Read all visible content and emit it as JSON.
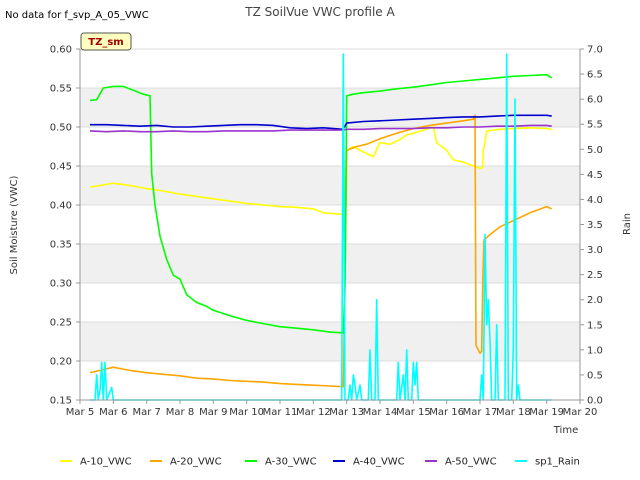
{
  "chart_data": {
    "type": "line",
    "title": "TZ SoilVue VWC profile A",
    "no_data_note": "No data for f_svp_A_05_VWC",
    "site_badge": "TZ_sm",
    "xlabel": "Time",
    "ylabel": "Soil Moisture (VWC)",
    "y2label": "Rain",
    "xlim": [
      5,
      20
    ],
    "ylim": [
      0.15,
      0.6
    ],
    "y2lim": [
      0.0,
      7.0
    ],
    "grid": "horizontal bands",
    "legend_position": "bottom",
    "x_ticks": [
      {
        "value": 5,
        "label": "Mar 5"
      },
      {
        "value": 6,
        "label": "Mar 6"
      },
      {
        "value": 7,
        "label": "Mar 7"
      },
      {
        "value": 8,
        "label": "Mar 8"
      },
      {
        "value": 9,
        "label": "Mar 9"
      },
      {
        "value": 10,
        "label": "Mar 10"
      },
      {
        "value": 11,
        "label": "Mar 11"
      },
      {
        "value": 12,
        "label": "Mar 12"
      },
      {
        "value": 13,
        "label": "Mar 13"
      },
      {
        "value": 14,
        "label": "Mar 14"
      },
      {
        "value": 15,
        "label": "Mar 15"
      },
      {
        "value": 16,
        "label": "Mar 16"
      },
      {
        "value": 17,
        "label": "Mar 17"
      },
      {
        "value": 18,
        "label": "Mar 18"
      },
      {
        "value": 19,
        "label": "Mar 19"
      },
      {
        "value": 20,
        "label": "Mar 20"
      }
    ],
    "y_ticks": [
      "0.15",
      "0.20",
      "0.25",
      "0.30",
      "0.35",
      "0.40",
      "0.45",
      "0.50",
      "0.55",
      "0.60"
    ],
    "y2_ticks": [
      "0.0",
      "0.5",
      "1.0",
      "1.5",
      "2.0",
      "2.5",
      "3.0",
      "3.5",
      "4.0",
      "4.5",
      "5.0",
      "5.5",
      "6.0",
      "6.5",
      "7.0"
    ],
    "series": [
      {
        "name": "A-10_VWC",
        "color": "#ffff00",
        "axis": "left",
        "points": [
          [
            5.3,
            0.423
          ],
          [
            5.6,
            0.425
          ],
          [
            6.0,
            0.428
          ],
          [
            6.5,
            0.425
          ],
          [
            7.0,
            0.421
          ],
          [
            7.5,
            0.418
          ],
          [
            8.0,
            0.414
          ],
          [
            8.5,
            0.411
          ],
          [
            9.0,
            0.408
          ],
          [
            9.5,
            0.405
          ],
          [
            10.0,
            0.402
          ],
          [
            10.5,
            0.4
          ],
          [
            11.0,
            0.398
          ],
          [
            11.5,
            0.397
          ],
          [
            12.0,
            0.395
          ],
          [
            12.3,
            0.39
          ],
          [
            12.6,
            0.389
          ],
          [
            12.9,
            0.388
          ],
          [
            13.0,
            0.47
          ],
          [
            13.2,
            0.475
          ],
          [
            13.5,
            0.468
          ],
          [
            13.8,
            0.462
          ],
          [
            14.0,
            0.48
          ],
          [
            14.3,
            0.478
          ],
          [
            14.6,
            0.484
          ],
          [
            14.8,
            0.49
          ],
          [
            15.0,
            0.492
          ],
          [
            15.3,
            0.496
          ],
          [
            15.6,
            0.5
          ],
          [
            15.7,
            0.48
          ],
          [
            16.0,
            0.47
          ],
          [
            16.2,
            0.458
          ],
          [
            16.5,
            0.455
          ],
          [
            16.8,
            0.45
          ],
          [
            17.0,
            0.447
          ],
          [
            17.08,
            0.448
          ],
          [
            17.1,
            0.47
          ],
          [
            17.15,
            0.48
          ],
          [
            17.2,
            0.495
          ],
          [
            17.6,
            0.497
          ],
          [
            18.0,
            0.498
          ],
          [
            18.5,
            0.499
          ],
          [
            19.0,
            0.498
          ],
          [
            19.15,
            0.497
          ]
        ]
      },
      {
        "name": "A-20_VWC",
        "color": "#ffa500",
        "axis": "left",
        "points": [
          [
            5.3,
            0.185
          ],
          [
            5.6,
            0.188
          ],
          [
            6.0,
            0.192
          ],
          [
            6.5,
            0.188
          ],
          [
            7.0,
            0.185
          ],
          [
            7.5,
            0.183
          ],
          [
            8.0,
            0.181
          ],
          [
            8.5,
            0.178
          ],
          [
            9.0,
            0.177
          ],
          [
            9.5,
            0.175
          ],
          [
            10.0,
            0.174
          ],
          [
            10.5,
            0.173
          ],
          [
            11.0,
            0.171
          ],
          [
            11.5,
            0.17
          ],
          [
            12.0,
            0.169
          ],
          [
            12.5,
            0.168
          ],
          [
            12.9,
            0.167
          ],
          [
            12.95,
            0.3
          ],
          [
            13.0,
            0.47
          ],
          [
            13.3,
            0.475
          ],
          [
            13.6,
            0.478
          ],
          [
            14.0,
            0.485
          ],
          [
            14.5,
            0.492
          ],
          [
            15.0,
            0.498
          ],
          [
            15.5,
            0.502
          ],
          [
            16.0,
            0.505
          ],
          [
            16.5,
            0.508
          ],
          [
            16.8,
            0.51
          ],
          [
            16.85,
            0.515
          ],
          [
            16.88,
            0.22
          ],
          [
            17.0,
            0.21
          ],
          [
            17.05,
            0.212
          ],
          [
            17.08,
            0.3
          ],
          [
            17.12,
            0.355
          ],
          [
            17.3,
            0.362
          ],
          [
            17.6,
            0.372
          ],
          [
            18.0,
            0.38
          ],
          [
            18.5,
            0.39
          ],
          [
            19.0,
            0.398
          ],
          [
            19.15,
            0.395
          ]
        ]
      },
      {
        "name": "A-30_VWC",
        "color": "#00ff00",
        "axis": "left",
        "points": [
          [
            5.3,
            0.534
          ],
          [
            5.5,
            0.535
          ],
          [
            5.7,
            0.55
          ],
          [
            6.0,
            0.552
          ],
          [
            6.3,
            0.552
          ],
          [
            6.6,
            0.547
          ],
          [
            6.9,
            0.542
          ],
          [
            7.1,
            0.54
          ],
          [
            7.15,
            0.44
          ],
          [
            7.25,
            0.4
          ],
          [
            7.4,
            0.36
          ],
          [
            7.6,
            0.33
          ],
          [
            7.8,
            0.31
          ],
          [
            8.0,
            0.305
          ],
          [
            8.2,
            0.285
          ],
          [
            8.5,
            0.275
          ],
          [
            8.8,
            0.27
          ],
          [
            9.0,
            0.265
          ],
          [
            9.5,
            0.258
          ],
          [
            10.0,
            0.252
          ],
          [
            10.5,
            0.248
          ],
          [
            11.0,
            0.244
          ],
          [
            11.5,
            0.242
          ],
          [
            12.0,
            0.24
          ],
          [
            12.5,
            0.237
          ],
          [
            12.9,
            0.236
          ],
          [
            12.95,
            0.3
          ],
          [
            13.0,
            0.54
          ],
          [
            13.2,
            0.542
          ],
          [
            13.5,
            0.544
          ],
          [
            14.0,
            0.546
          ],
          [
            14.5,
            0.549
          ],
          [
            15.0,
            0.551
          ],
          [
            15.5,
            0.554
          ],
          [
            16.0,
            0.557
          ],
          [
            16.5,
            0.559
          ],
          [
            17.0,
            0.561
          ],
          [
            17.5,
            0.563
          ],
          [
            18.0,
            0.565
          ],
          [
            18.5,
            0.566
          ],
          [
            19.0,
            0.567
          ],
          [
            19.15,
            0.563
          ]
        ]
      },
      {
        "name": "A-40_VWC",
        "color": "#0000cc",
        "axis": "left",
        "points": [
          [
            5.3,
            0.503
          ],
          [
            5.8,
            0.503
          ],
          [
            6.3,
            0.502
          ],
          [
            6.8,
            0.501
          ],
          [
            7.3,
            0.502
          ],
          [
            7.8,
            0.5
          ],
          [
            8.3,
            0.5
          ],
          [
            8.8,
            0.501
          ],
          [
            9.3,
            0.502
          ],
          [
            9.8,
            0.503
          ],
          [
            10.3,
            0.503
          ],
          [
            10.8,
            0.502
          ],
          [
            11.3,
            0.499
          ],
          [
            11.8,
            0.498
          ],
          [
            12.3,
            0.499
          ],
          [
            12.9,
            0.497
          ],
          [
            13.0,
            0.505
          ],
          [
            13.5,
            0.507
          ],
          [
            14.0,
            0.508
          ],
          [
            14.5,
            0.509
          ],
          [
            15.0,
            0.51
          ],
          [
            15.5,
            0.511
          ],
          [
            16.0,
            0.512
          ],
          [
            16.5,
            0.513
          ],
          [
            17.0,
            0.513
          ],
          [
            17.5,
            0.514
          ],
          [
            18.0,
            0.515
          ],
          [
            18.5,
            0.515
          ],
          [
            19.0,
            0.515
          ],
          [
            19.15,
            0.514
          ]
        ]
      },
      {
        "name": "A-50_VWC",
        "color": "#9933cc",
        "axis": "left",
        "points": [
          [
            5.3,
            0.495
          ],
          [
            5.8,
            0.494
          ],
          [
            6.3,
            0.495
          ],
          [
            6.8,
            0.494
          ],
          [
            7.3,
            0.494
          ],
          [
            7.8,
            0.495
          ],
          [
            8.3,
            0.494
          ],
          [
            8.8,
            0.494
          ],
          [
            9.3,
            0.495
          ],
          [
            9.8,
            0.495
          ],
          [
            10.3,
            0.495
          ],
          [
            10.8,
            0.495
          ],
          [
            11.3,
            0.496
          ],
          [
            11.8,
            0.496
          ],
          [
            12.3,
            0.496
          ],
          [
            12.9,
            0.496
          ],
          [
            13.0,
            0.497
          ],
          [
            13.5,
            0.497
          ],
          [
            14.0,
            0.498
          ],
          [
            14.5,
            0.498
          ],
          [
            15.0,
            0.498
          ],
          [
            15.5,
            0.499
          ],
          [
            16.0,
            0.499
          ],
          [
            16.5,
            0.5
          ],
          [
            17.0,
            0.5
          ],
          [
            17.5,
            0.501
          ],
          [
            18.0,
            0.501
          ],
          [
            18.5,
            0.502
          ],
          [
            19.0,
            0.502
          ],
          [
            19.15,
            0.501
          ]
        ]
      },
      {
        "name": "sp1_Rain",
        "color": "#00ffff",
        "axis": "right",
        "points": [
          [
            5.3,
            0.0
          ],
          [
            5.45,
            0.0
          ],
          [
            5.5,
            0.5
          ],
          [
            5.55,
            0.0
          ],
          [
            5.6,
            0.2
          ],
          [
            5.65,
            0.75
          ],
          [
            5.7,
            0.0
          ],
          [
            5.75,
            0.75
          ],
          [
            5.8,
            0.0
          ],
          [
            5.95,
            0.25
          ],
          [
            6.0,
            0.0
          ],
          [
            6.5,
            0.0
          ],
          [
            7.0,
            0.0
          ],
          [
            8.0,
            0.0
          ],
          [
            9.0,
            0.0
          ],
          [
            10.0,
            0.0
          ],
          [
            11.0,
            0.0
          ],
          [
            12.0,
            0.0
          ],
          [
            12.85,
            0.0
          ],
          [
            12.9,
            6.9
          ],
          [
            12.95,
            0.0
          ],
          [
            13.05,
            0.0
          ],
          [
            13.1,
            0.3
          ],
          [
            13.15,
            0.0
          ],
          [
            13.2,
            0.5
          ],
          [
            13.25,
            0.3
          ],
          [
            13.3,
            0.0
          ],
          [
            13.4,
            0.3
          ],
          [
            13.45,
            0.0
          ],
          [
            13.65,
            0.0
          ],
          [
            13.7,
            1.0
          ],
          [
            13.75,
            0.0
          ],
          [
            13.85,
            0.0
          ],
          [
            13.9,
            2.0
          ],
          [
            13.95,
            0.0
          ],
          [
            14.5,
            0.0
          ],
          [
            14.55,
            0.75
          ],
          [
            14.6,
            0.0
          ],
          [
            14.7,
            0.5
          ],
          [
            14.75,
            0.0
          ],
          [
            14.8,
            1.0
          ],
          [
            14.85,
            0.0
          ],
          [
            14.95,
            0.0
          ],
          [
            15.0,
            0.75
          ],
          [
            15.05,
            0.3
          ],
          [
            15.1,
            0.75
          ],
          [
            15.15,
            0.0
          ],
          [
            16.0,
            0.0
          ],
          [
            17.0,
            0.0
          ],
          [
            17.05,
            0.5
          ],
          [
            17.1,
            0.0
          ],
          [
            17.15,
            3.3
          ],
          [
            17.2,
            1.5
          ],
          [
            17.25,
            2.0
          ],
          [
            17.3,
            1.2
          ],
          [
            17.35,
            0.0
          ],
          [
            17.45,
            0.0
          ],
          [
            17.5,
            1.5
          ],
          [
            17.55,
            0.0
          ],
          [
            17.75,
            0.0
          ],
          [
            17.8,
            6.9
          ],
          [
            17.85,
            0.0
          ],
          [
            17.95,
            0.0
          ],
          [
            18.0,
            1.0
          ],
          [
            18.05,
            6.0
          ],
          [
            18.1,
            0.0
          ],
          [
            18.15,
            0.3
          ],
          [
            18.2,
            0.0
          ],
          [
            18.5,
            0.0
          ],
          [
            19.0,
            0.0
          ],
          [
            19.15,
            0.0
          ]
        ]
      }
    ]
  }
}
